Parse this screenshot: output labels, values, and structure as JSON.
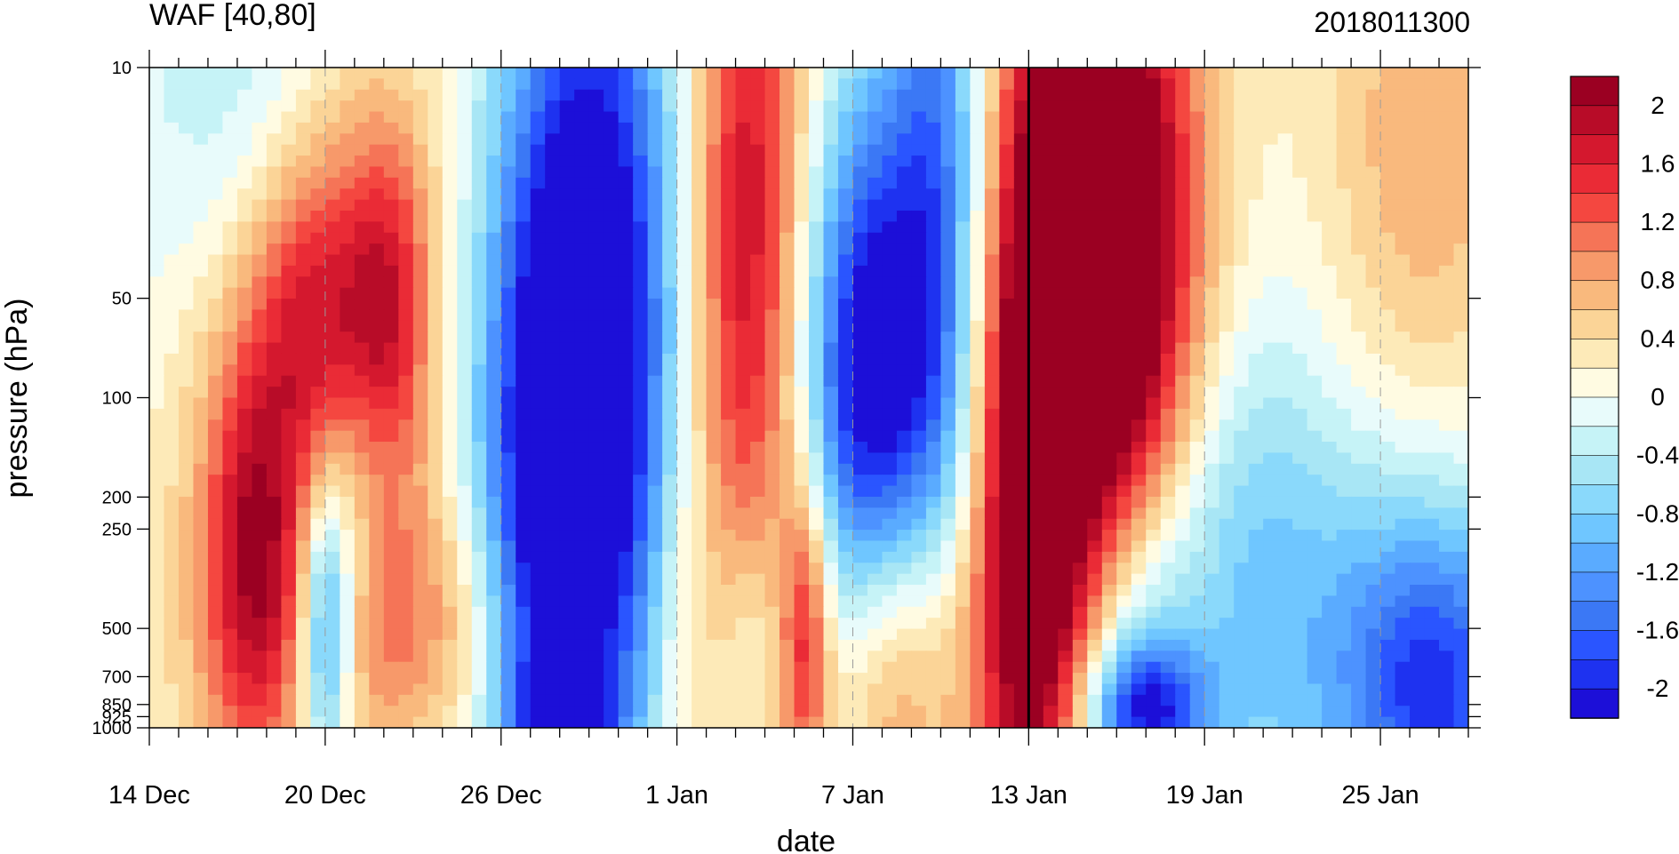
{
  "chart_data": {
    "type": "heatmap",
    "title": "WAF [40,80]",
    "date_stamp": "2018011300",
    "xlabel": "date",
    "ylabel": "pressure (hPa)",
    "x_range_days": [
      0,
      45
    ],
    "y_axis": {
      "scale": "log",
      "reversed": true,
      "range": [
        10,
        1000
      ],
      "ticks": [
        10,
        50,
        100,
        200,
        250,
        500,
        700,
        850,
        925,
        1000
      ]
    },
    "x_ticks": [
      {
        "day": 0,
        "label": "14 Dec"
      },
      {
        "day": 6,
        "label": "20 Dec"
      },
      {
        "day": 12,
        "label": "26 Dec"
      },
      {
        "day": 18,
        "label": "1 Jan"
      },
      {
        "day": 24,
        "label": "7 Jan"
      },
      {
        "day": 30,
        "label": "13 Jan"
      },
      {
        "day": 36,
        "label": "19 Jan"
      },
      {
        "day": 42,
        "label": "25 Jan"
      }
    ],
    "current_day_marker": 30,
    "colorbar": {
      "levels": [
        -2.2,
        -2,
        -1.8,
        -1.6,
        -1.4,
        -1.2,
        -1,
        -0.8,
        -0.6,
        -0.4,
        -0.2,
        0,
        0.2,
        0.4,
        0.6,
        0.8,
        1,
        1.2,
        1.4,
        1.6,
        1.8,
        2,
        2.2
      ],
      "colors": [
        "#1c0fd8",
        "#1e32f0",
        "#2a55ff",
        "#3b78f5",
        "#4d92ff",
        "#5aabff",
        "#6fc6ff",
        "#8ad9fb",
        "#a8e6f5",
        "#c6f3f7",
        "#e8fbfb",
        "#fffbe2",
        "#fdeab8",
        "#fbd497",
        "#f9b97d",
        "#f7996a",
        "#f57457",
        "#f44740",
        "#ea2b36",
        "#d4182e",
        "#b80c28",
        "#9b0022"
      ],
      "tick_labels": [
        "2",
        "1.6",
        "1.2",
        "0.8",
        "0.4",
        "0",
        "-0.4",
        "-0.8",
        "-1.2",
        "-1.6",
        "-2"
      ]
    },
    "anomalies": [
      {
        "d": 1.5,
        "p": 30,
        "a": -0.35,
        "wd": 2.5,
        "wl": 0.9
      },
      {
        "d": 4.0,
        "p": 14,
        "a": -0.55,
        "wd": 2.5,
        "wl": 0.5
      },
      {
        "d": 7.5,
        "p": 55,
        "a": 0.95,
        "wd": 2.5,
        "wl": 0.7
      },
      {
        "d": 5.5,
        "p": 52,
        "a": 1.0,
        "wd": 1.5,
        "wl": 0.35
      },
      {
        "d": 8.2,
        "p": 52,
        "a": 0.9,
        "wd": 1.0,
        "wl": 0.35
      },
      {
        "d": 3.6,
        "p": 320,
        "a": 1.5,
        "wd": 1.2,
        "wl": 0.45
      },
      {
        "d": 2.5,
        "p": 150,
        "a": 0.7,
        "wd": 2.5,
        "wl": 1.0
      },
      {
        "d": 6.0,
        "p": 500,
        "a": -1.6,
        "wd": 0.6,
        "wl": 0.3
      },
      {
        "d": 8.3,
        "p": 480,
        "a": 0.85,
        "wd": 1.4,
        "wl": 0.3
      },
      {
        "d": 10.8,
        "p": 500,
        "a": 0.6,
        "wd": 1.0,
        "wl": 0.3
      },
      {
        "d": 7.0,
        "p": 230,
        "a": -0.6,
        "wd": 1.0,
        "wl": 0.3
      },
      {
        "d": 14.2,
        "p": 80,
        "a": -2.0,
        "wd": 2.2,
        "wl": 0.8
      },
      {
        "d": 15.8,
        "p": 40,
        "a": -1.1,
        "wd": 2.0,
        "wl": 1.1
      },
      {
        "d": 13.5,
        "p": 300,
        "a": -0.7,
        "wd": 2.0,
        "wl": 0.6
      },
      {
        "d": 14.0,
        "p": 1000,
        "a": -1.3,
        "wd": 1.2,
        "wl": 0.15
      },
      {
        "d": 20.5,
        "p": 24,
        "a": 1.45,
        "wd": 1.5,
        "wl": 1.0
      },
      {
        "d": 20.0,
        "p": 80,
        "a": 0.5,
        "wd": 1.5,
        "wl": 0.9
      },
      {
        "d": 24.5,
        "p": 85,
        "a": -1.85,
        "wd": 1.6,
        "wl": 0.65
      },
      {
        "d": 27.0,
        "p": 20,
        "a": -1.4,
        "wd": 1.2,
        "wl": 0.9
      },
      {
        "d": 25.0,
        "p": 180,
        "a": -0.8,
        "wd": 2.0,
        "wl": 0.6
      },
      {
        "d": 18.0,
        "p": 480,
        "a": 0.4,
        "wd": 0.7,
        "wl": 0.4
      },
      {
        "d": 22.4,
        "p": 520,
        "a": 1.3,
        "wd": 0.6,
        "wl": 0.35
      },
      {
        "d": 25.2,
        "p": 560,
        "a": 1.2,
        "wd": 1.5,
        "wl": 0.4
      },
      {
        "d": 20.5,
        "p": 560,
        "a": -0.5,
        "wd": 0.8,
        "wl": 0.3
      },
      {
        "d": 27.0,
        "p": 700,
        "a": 0.6,
        "wd": 3.0,
        "wl": 0.5
      },
      {
        "d": 32.5,
        "p": 65,
        "a": 2.6,
        "wd": 2.5,
        "wl": 0.85
      },
      {
        "d": 32.0,
        "p": 20,
        "a": 1.4,
        "wd": 2.0,
        "wl": 0.7
      },
      {
        "d": 30.0,
        "p": 300,
        "a": 1.6,
        "wd": 1.2,
        "wl": 0.7
      },
      {
        "d": 33.5,
        "p": 500,
        "a": -1.4,
        "wd": 1.5,
        "wl": 0.4
      },
      {
        "d": 34.0,
        "p": 900,
        "a": -1.7,
        "wd": 1.5,
        "wl": 0.15
      },
      {
        "d": 36.5,
        "p": 230,
        "a": -0.6,
        "wd": 2.0,
        "wl": 0.5
      },
      {
        "d": 39.0,
        "p": 150,
        "a": -0.35,
        "wd": 4.0,
        "wl": 0.9
      },
      {
        "d": 44.0,
        "p": 760,
        "a": -1.3,
        "wd": 2.0,
        "wl": 0.35
      },
      {
        "d": 42.0,
        "p": 600,
        "a": -0.7,
        "wd": 4.0,
        "wl": 0.5
      },
      {
        "d": 43.5,
        "p": 18,
        "a": 0.7,
        "wd": 2.5,
        "wl": 0.75
      },
      {
        "d": 40.5,
        "p": 30,
        "a": 0.25,
        "wd": 4.0,
        "wl": 0.7
      }
    ]
  }
}
